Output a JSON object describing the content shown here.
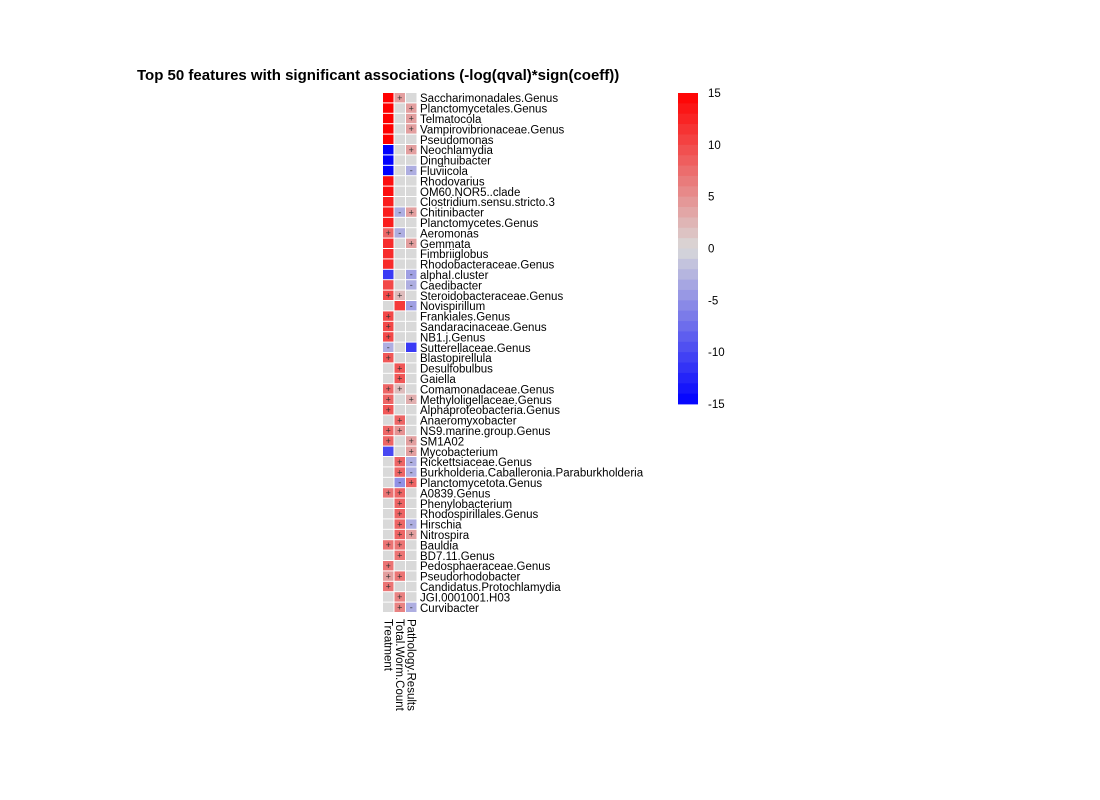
{
  "chart_data": {
    "type": "heatmap",
    "title": "Top 50 features with significant associations (-log(qval)*sign(coeff))",
    "columns": [
      "Treatment",
      "Total.Worm.Count",
      "Pathology.Results"
    ],
    "rows": [
      "Saccharimonadales.Genus",
      "Planctomycetales.Genus",
      "Telmatocola",
      "Vampirovibrionaceae.Genus",
      "Pseudomonas",
      "Neochlamydia",
      "Dinghuibacter",
      "Fluviicola",
      "Rhodovarius",
      "OM60.NOR5..clade",
      "Clostridium.sensu.stricto.3",
      "Chitinibacter",
      "Planctomycetes.Genus",
      "Aeromonas",
      "Gemmata",
      "Fimbriiglobus",
      "Rhodobacteraceae.Genus",
      "alphaI.cluster",
      "Caedibacter",
      "Steroidobacteraceae.Genus",
      "Novispirillum",
      "Frankiales.Genus",
      "Sandaracinaceae.Genus",
      "NB1.j.Genus",
      "Sutterellaceae.Genus",
      "Blastopirellula",
      "Desulfobulbus",
      "Gaiella",
      "Comamonadaceae.Genus",
      "Methyloligellaceae.Genus",
      "Alphaproteobacteria.Genus",
      "Anaeromyxobacter",
      "NS9.marine.group.Genus",
      "SM1A02",
      "Mycobacterium",
      "Rickettsiaceae.Genus",
      "Burkholderia.Caballeronia.Paraburkholderia",
      "Planctomycetota.Genus",
      "A0839.Genus",
      "Phenylobacterium",
      "Rhodospirillales.Genus",
      "Hirschia",
      "Nitrospira",
      "Bauldia",
      "BD7.11.Genus",
      "Pedosphaeraceae.Genus",
      "Pseudorhodobacter",
      "Candidatus.Protochlamydia",
      "JGI.0001001.H03",
      "Curvibacter"
    ],
    "values": [
      [
        15,
        4,
        0
      ],
      [
        15,
        0,
        4
      ],
      [
        15,
        0,
        4
      ],
      [
        15,
        0,
        4
      ],
      [
        15,
        0,
        0
      ],
      [
        -15,
        0,
        4
      ],
      [
        -15,
        0,
        0
      ],
      [
        -15,
        0,
        -3
      ],
      [
        14,
        0,
        0
      ],
      [
        14,
        0,
        0
      ],
      [
        13,
        0,
        0
      ],
      [
        13,
        -3,
        4
      ],
      [
        13,
        0,
        0
      ],
      [
        8,
        -3,
        0
      ],
      [
        12,
        0,
        4
      ],
      [
        12,
        0,
        0
      ],
      [
        12,
        0,
        0
      ],
      [
        -11,
        0,
        -4
      ],
      [
        10,
        0,
        -3
      ],
      [
        10,
        2,
        0
      ],
      [
        0,
        11,
        -4
      ],
      [
        10,
        0,
        0
      ],
      [
        10,
        0,
        0
      ],
      [
        10,
        0,
        0
      ],
      [
        -3,
        0,
        -11
      ],
      [
        9,
        0,
        0
      ],
      [
        0,
        9,
        0
      ],
      [
        0,
        9,
        0
      ],
      [
        8,
        2,
        0
      ],
      [
        8,
        0,
        3
      ],
      [
        9,
        0,
        0
      ],
      [
        0,
        8,
        0
      ],
      [
        8,
        5,
        0
      ],
      [
        8,
        0,
        4
      ],
      [
        -10,
        0,
        4
      ],
      [
        0,
        8,
        -3
      ],
      [
        0,
        8,
        -3
      ],
      [
        0,
        -5,
        8
      ],
      [
        7,
        8,
        0
      ],
      [
        0,
        8,
        0
      ],
      [
        0,
        8,
        0
      ],
      [
        0,
        8,
        -3
      ],
      [
        0,
        8,
        4
      ],
      [
        7,
        7,
        0
      ],
      [
        0,
        7,
        0
      ],
      [
        7,
        0,
        0
      ],
      [
        4,
        7,
        0
      ],
      [
        7,
        0,
        0
      ],
      [
        0,
        6,
        0
      ],
      [
        0,
        6,
        -3
      ]
    ],
    "symbols": [
      [
        "",
        "+",
        ""
      ],
      [
        "",
        "",
        "+"
      ],
      [
        "",
        "",
        "+"
      ],
      [
        "",
        "",
        "+"
      ],
      [
        "",
        "",
        ""
      ],
      [
        "",
        "",
        "+"
      ],
      [
        "",
        "",
        ""
      ],
      [
        "",
        "",
        "-"
      ],
      [
        "",
        "",
        ""
      ],
      [
        "",
        "",
        ""
      ],
      [
        "",
        "",
        ""
      ],
      [
        "",
        "-",
        "+"
      ],
      [
        "",
        "",
        ""
      ],
      [
        "+",
        "-",
        ""
      ],
      [
        "",
        "",
        "+"
      ],
      [
        "",
        "",
        ""
      ],
      [
        "",
        "",
        ""
      ],
      [
        "",
        "",
        "-"
      ],
      [
        "",
        "",
        "-"
      ],
      [
        "+",
        "+",
        ""
      ],
      [
        "",
        "",
        "-"
      ],
      [
        "+",
        "",
        ""
      ],
      [
        "+",
        "",
        ""
      ],
      [
        "+",
        "",
        ""
      ],
      [
        "-",
        "",
        ""
      ],
      [
        "+",
        "",
        ""
      ],
      [
        "",
        "+",
        ""
      ],
      [
        "",
        "+",
        ""
      ],
      [
        "+",
        "+",
        ""
      ],
      [
        "+",
        "",
        "+"
      ],
      [
        "+",
        "",
        ""
      ],
      [
        "",
        "+",
        ""
      ],
      [
        "+",
        "+",
        ""
      ],
      [
        "+",
        "",
        "+"
      ],
      [
        "",
        "",
        "+"
      ],
      [
        "",
        "+",
        "-"
      ],
      [
        "",
        "+",
        "-"
      ],
      [
        "",
        "-",
        "+"
      ],
      [
        "+",
        "+",
        ""
      ],
      [
        "",
        "+",
        ""
      ],
      [
        "",
        "+",
        ""
      ],
      [
        "",
        "+",
        "-"
      ],
      [
        "",
        "+",
        "+"
      ],
      [
        "+",
        "+",
        ""
      ],
      [
        "",
        "+",
        ""
      ],
      [
        "+",
        "",
        ""
      ],
      [
        "+",
        "+",
        ""
      ],
      [
        "+",
        "",
        ""
      ],
      [
        "",
        "+",
        ""
      ],
      [
        "",
        "+",
        "-"
      ]
    ],
    "colorbar": {
      "range": [
        -15,
        15
      ],
      "ticks": [
        "15",
        "10",
        "5",
        "0",
        "-5",
        "-10",
        "-15"
      ],
      "tick_values": [
        15,
        10,
        5,
        0,
        -5,
        -10,
        -15
      ],
      "low_color": "#0000ff",
      "mid_color": "#d9d9d9",
      "high_color": "#ff0000"
    }
  }
}
